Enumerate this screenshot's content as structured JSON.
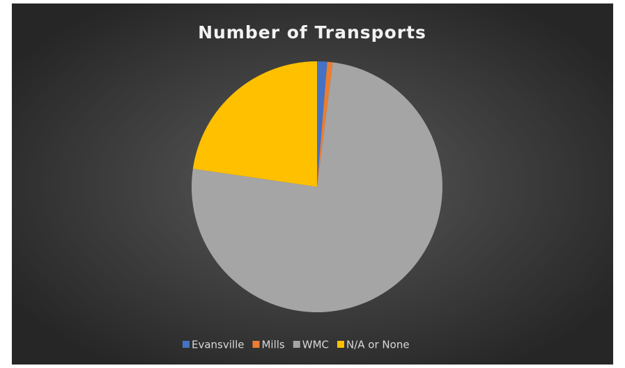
{
  "chart_data": {
    "type": "pie",
    "title": "Number of Transports",
    "categories": [
      "Evansville",
      "Mills",
      "WMC",
      "N/A or None"
    ],
    "values": [
      1.3,
      0.7,
      75.3,
      22.7
    ],
    "colors": [
      "#4472c4",
      "#ed7d31",
      "#a5a5a5",
      "#ffc000"
    ],
    "legend": "bottom"
  }
}
